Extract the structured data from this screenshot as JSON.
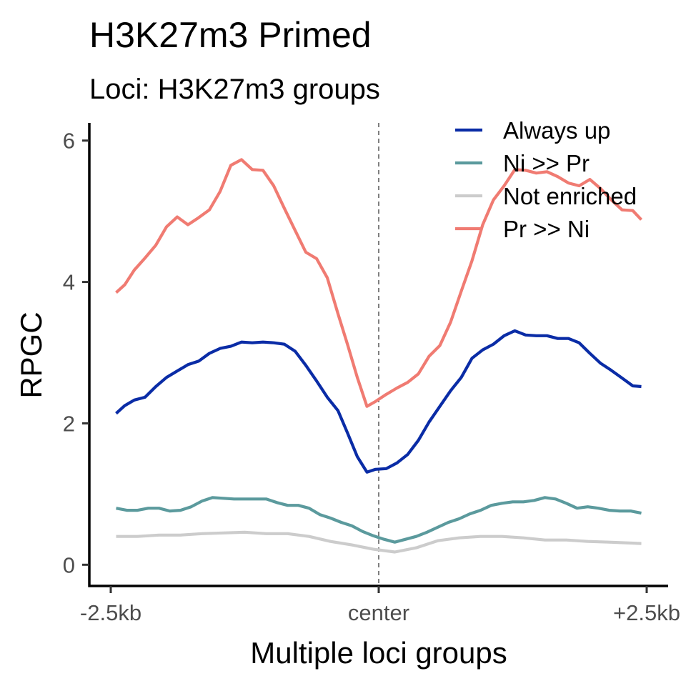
{
  "chart_data": {
    "type": "line",
    "title": "H3K27m3 Primed",
    "subtitle": "Loci: H3K27m3 groups",
    "xlabel": "Multiple loci groups",
    "ylabel": "RPGC",
    "x_tick_labels": [
      "-2.5kb",
      "center",
      "+2.5kb"
    ],
    "x_tick_positions": [
      -2500,
      0,
      2500
    ],
    "y_ticks": [
      0,
      2,
      4,
      6
    ],
    "xlim": [
      -2700,
      2700
    ],
    "ylim": [
      -0.3,
      6.25
    ],
    "center_line": 0,
    "grid": false,
    "legend_position": "top-right",
    "series": [
      {
        "name": "Always up",
        "color": "#0a2ca6",
        "points": [
          [
            -2450,
            2.14
          ],
          [
            -2370,
            2.25
          ],
          [
            -2280,
            2.33
          ],
          [
            -2180,
            2.37
          ],
          [
            -2080,
            2.52
          ],
          [
            -1980,
            2.65
          ],
          [
            -1880,
            2.74
          ],
          [
            -1780,
            2.83
          ],
          [
            -1680,
            2.88
          ],
          [
            -1580,
            2.99
          ],
          [
            -1480,
            3.06
          ],
          [
            -1380,
            3.09
          ],
          [
            -1280,
            3.15
          ],
          [
            -1180,
            3.14
          ],
          [
            -1080,
            3.15
          ],
          [
            -980,
            3.14
          ],
          [
            -880,
            3.12
          ],
          [
            -780,
            3.02
          ],
          [
            -680,
            2.82
          ],
          [
            -580,
            2.6
          ],
          [
            -480,
            2.37
          ],
          [
            -380,
            2.18
          ],
          [
            -290,
            1.86
          ],
          [
            -200,
            1.53
          ],
          [
            -110,
            1.31
          ],
          [
            -30,
            1.35
          ],
          [
            70,
            1.36
          ],
          [
            170,
            1.44
          ],
          [
            270,
            1.56
          ],
          [
            370,
            1.76
          ],
          [
            470,
            2.02
          ],
          [
            570,
            2.24
          ],
          [
            670,
            2.46
          ],
          [
            770,
            2.65
          ],
          [
            870,
            2.92
          ],
          [
            970,
            3.04
          ],
          [
            1070,
            3.12
          ],
          [
            1170,
            3.24
          ],
          [
            1270,
            3.31
          ],
          [
            1370,
            3.25
          ],
          [
            1470,
            3.24
          ],
          [
            1570,
            3.24
          ],
          [
            1670,
            3.2
          ],
          [
            1770,
            3.2
          ],
          [
            1870,
            3.14
          ],
          [
            1970,
            2.99
          ],
          [
            2070,
            2.85
          ],
          [
            2170,
            2.75
          ],
          [
            2270,
            2.64
          ],
          [
            2370,
            2.53
          ],
          [
            2450,
            2.52
          ]
        ]
      },
      {
        "name": "Ni >> Pr",
        "color": "#5b9a9d",
        "points": [
          [
            -2450,
            0.8
          ],
          [
            -2350,
            0.77
          ],
          [
            -2250,
            0.77
          ],
          [
            -2150,
            0.8
          ],
          [
            -2050,
            0.8
          ],
          [
            -1950,
            0.76
          ],
          [
            -1850,
            0.77
          ],
          [
            -1750,
            0.82
          ],
          [
            -1650,
            0.9
          ],
          [
            -1550,
            0.95
          ],
          [
            -1450,
            0.94
          ],
          [
            -1350,
            0.93
          ],
          [
            -1250,
            0.93
          ],
          [
            -1150,
            0.93
          ],
          [
            -1050,
            0.93
          ],
          [
            -950,
            0.88
          ],
          [
            -850,
            0.84
          ],
          [
            -750,
            0.84
          ],
          [
            -650,
            0.8
          ],
          [
            -550,
            0.71
          ],
          [
            -450,
            0.66
          ],
          [
            -350,
            0.6
          ],
          [
            -250,
            0.55
          ],
          [
            -150,
            0.47
          ],
          [
            -50,
            0.41
          ],
          [
            50,
            0.36
          ],
          [
            150,
            0.32
          ],
          [
            250,
            0.36
          ],
          [
            350,
            0.4
          ],
          [
            450,
            0.46
          ],
          [
            550,
            0.53
          ],
          [
            650,
            0.6
          ],
          [
            750,
            0.65
          ],
          [
            850,
            0.72
          ],
          [
            950,
            0.77
          ],
          [
            1050,
            0.84
          ],
          [
            1150,
            0.87
          ],
          [
            1250,
            0.89
          ],
          [
            1350,
            0.89
          ],
          [
            1450,
            0.91
          ],
          [
            1550,
            0.95
          ],
          [
            1650,
            0.93
          ],
          [
            1750,
            0.87
          ],
          [
            1850,
            0.8
          ],
          [
            1950,
            0.82
          ],
          [
            2050,
            0.8
          ],
          [
            2150,
            0.77
          ],
          [
            2250,
            0.76
          ],
          [
            2350,
            0.76
          ],
          [
            2450,
            0.73
          ]
        ]
      },
      {
        "name": "Not enriched",
        "color": "#cccccc",
        "points": [
          [
            -2450,
            0.4
          ],
          [
            -2250,
            0.4
          ],
          [
            -2050,
            0.42
          ],
          [
            -1850,
            0.42
          ],
          [
            -1650,
            0.44
          ],
          [
            -1450,
            0.45
          ],
          [
            -1250,
            0.46
          ],
          [
            -1050,
            0.44
          ],
          [
            -850,
            0.44
          ],
          [
            -650,
            0.4
          ],
          [
            -450,
            0.33
          ],
          [
            -250,
            0.28
          ],
          [
            -50,
            0.22
          ],
          [
            150,
            0.18
          ],
          [
            350,
            0.24
          ],
          [
            550,
            0.34
          ],
          [
            750,
            0.38
          ],
          [
            950,
            0.4
          ],
          [
            1150,
            0.4
          ],
          [
            1350,
            0.38
          ],
          [
            1550,
            0.35
          ],
          [
            1750,
            0.35
          ],
          [
            1950,
            0.33
          ],
          [
            2150,
            0.32
          ],
          [
            2450,
            0.3
          ]
        ]
      },
      {
        "name": "Pr >> Ni",
        "color": "#f07b72",
        "points": [
          [
            -2450,
            3.85
          ],
          [
            -2370,
            3.96
          ],
          [
            -2280,
            4.17
          ],
          [
            -2180,
            4.34
          ],
          [
            -2080,
            4.52
          ],
          [
            -1980,
            4.78
          ],
          [
            -1880,
            4.92
          ],
          [
            -1780,
            4.81
          ],
          [
            -1680,
            4.91
          ],
          [
            -1580,
            5.02
          ],
          [
            -1480,
            5.28
          ],
          [
            -1380,
            5.65
          ],
          [
            -1280,
            5.73
          ],
          [
            -1180,
            5.59
          ],
          [
            -1080,
            5.58
          ],
          [
            -980,
            5.36
          ],
          [
            -880,
            5.04
          ],
          [
            -780,
            4.73
          ],
          [
            -680,
            4.42
          ],
          [
            -580,
            4.33
          ],
          [
            -480,
            4.06
          ],
          [
            -380,
            3.55
          ],
          [
            -290,
            3.11
          ],
          [
            -200,
            2.65
          ],
          [
            -110,
            2.24
          ],
          [
            -30,
            2.31
          ],
          [
            70,
            2.41
          ],
          [
            170,
            2.5
          ],
          [
            270,
            2.58
          ],
          [
            370,
            2.7
          ],
          [
            470,
            2.95
          ],
          [
            570,
            3.1
          ],
          [
            670,
            3.43
          ],
          [
            770,
            3.87
          ],
          [
            870,
            4.3
          ],
          [
            970,
            4.81
          ],
          [
            1070,
            5.16
          ],
          [
            1170,
            5.36
          ],
          [
            1270,
            5.59
          ],
          [
            1370,
            5.58
          ],
          [
            1470,
            5.54
          ],
          [
            1570,
            5.56
          ],
          [
            1670,
            5.49
          ],
          [
            1770,
            5.4
          ],
          [
            1870,
            5.36
          ],
          [
            1970,
            5.45
          ],
          [
            2070,
            5.32
          ],
          [
            2170,
            5.16
          ],
          [
            2270,
            5.02
          ],
          [
            2370,
            5.01
          ],
          [
            2450,
            4.88
          ]
        ]
      }
    ]
  }
}
